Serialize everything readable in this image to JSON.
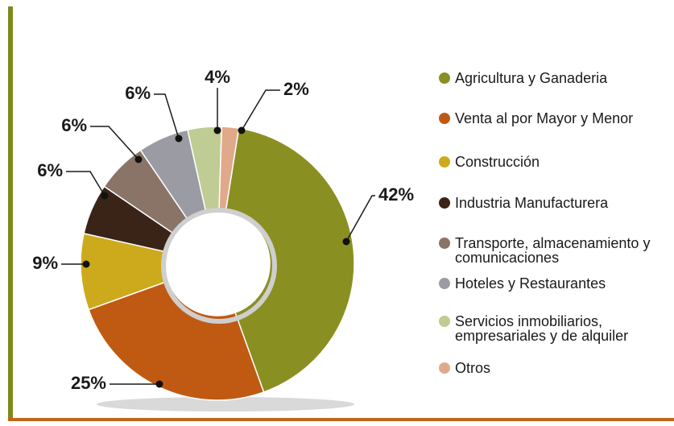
{
  "chart_data": {
    "type": "donut",
    "categories": [
      "Agricultura y Ganaderia",
      "Venta al por Mayor y Menor",
      "Construcción",
      "Industria Manufacturera",
      "Transporte, almacenamiento y comunicaciones",
      "Hoteles y Restaurantes",
      "Servicios inmobiliarios, empresariales y de alquiler",
      "Otros"
    ],
    "values": [
      42,
      25,
      9,
      6,
      6,
      6,
      4,
      2
    ],
    "value_labels": [
      "42%",
      "25%",
      "9%",
      "6%",
      "6%",
      "6%",
      "4%",
      "2%"
    ],
    "colors": [
      "#8a8f22",
      "#c05a13",
      "#cdaa1c",
      "#3a2418",
      "#8a7468",
      "#9b9ba4",
      "#bfcc93",
      "#e0a98a"
    ]
  }
}
